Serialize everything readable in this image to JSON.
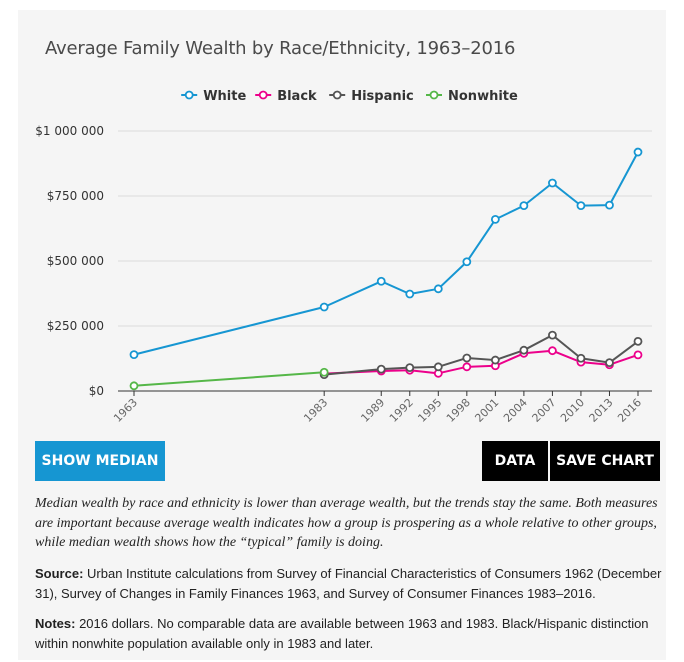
{
  "title": "Average Family Wealth by Race/Ethnicity, 1963–2016",
  "buttons": {
    "median": "SHOW MEDIAN",
    "data": "DATA",
    "save": "SAVE CHART"
  },
  "description": "Median wealth by race and ethnicity is lower than average wealth, but the trends stay the same. Both measures are important because average wealth indicates how a group is prospering as a whole relative to other groups, while median wealth shows how the “typical” family is doing.",
  "source": {
    "label": "Source:",
    "text": " Urban Institute calculations from Survey of Financial Characteristics of Consumers 1962 (December 31), Survey of Changes in Family Finances 1963, and Survey of Consumer Finances 1983–2016."
  },
  "notes": {
    "label": "Notes:",
    "text": " 2016 dollars. No comparable data are available between 1963 and 1983. Black/Hispanic distinction within nonwhite population available only in 1983 and later."
  },
  "colors": {
    "White": "#1696d2",
    "Black": "#ec008b",
    "Hispanic": "#555555",
    "Nonwhite": "#55b748"
  },
  "chart_data": {
    "type": "line",
    "x": [
      1963,
      1983,
      1989,
      1992,
      1995,
      1998,
      2001,
      2004,
      2007,
      2010,
      2013,
      2016
    ],
    "x_labels": [
      "1963",
      "1983",
      "1989",
      "1992",
      "1995",
      "1998",
      "2001",
      "2004",
      "2007",
      "2010",
      "2013",
      "2016"
    ],
    "y_ticks": [
      0,
      250000,
      500000,
      750000,
      1000000
    ],
    "y_tick_labels": [
      "$0",
      "$250 000",
      "$500 000",
      "$750 000",
      "$1 000 000"
    ],
    "ylim": [
      0,
      1000000
    ],
    "legend_position": "top-center",
    "grid": true,
    "series": [
      {
        "name": "White",
        "x": [
          1963,
          1983,
          1989,
          1992,
          1995,
          1998,
          2001,
          2004,
          2007,
          2010,
          2013,
          2016
        ],
        "values": [
          140000,
          323000,
          422000,
          373000,
          393000,
          497000,
          660000,
          713000,
          800000,
          713000,
          715000,
          919000
        ]
      },
      {
        "name": "Black",
        "x": [
          1983,
          1989,
          1992,
          1995,
          1998,
          2001,
          2004,
          2007,
          2010,
          2013,
          2016
        ],
        "values": [
          67000,
          77000,
          80000,
          68000,
          93000,
          97000,
          145000,
          155000,
          111000,
          101000,
          139000
        ]
      },
      {
        "name": "Hispanic",
        "x": [
          1983,
          1989,
          1992,
          1995,
          1998,
          2001,
          2004,
          2007,
          2010,
          2013,
          2016
        ],
        "values": [
          63000,
          84000,
          90000,
          93000,
          127000,
          119000,
          157000,
          215000,
          126000,
          109000,
          191000
        ]
      },
      {
        "name": "Nonwhite",
        "x": [
          1963,
          1983
        ],
        "values": [
          20000,
          72000
        ]
      }
    ]
  }
}
